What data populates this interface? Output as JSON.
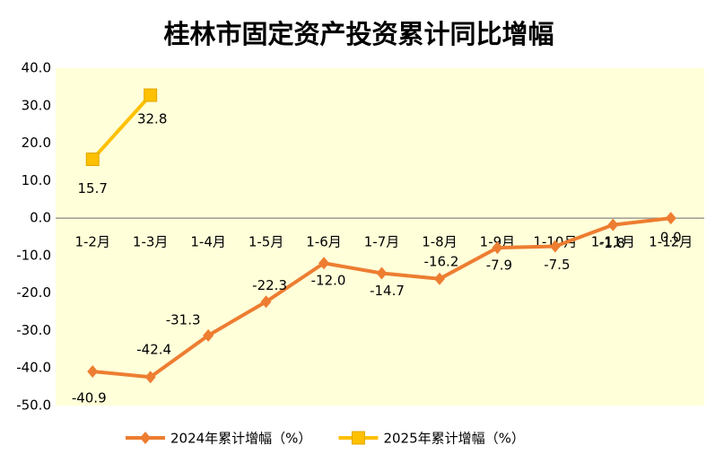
{
  "chart_data": {
    "type": "line",
    "title": "桂林市固定资产投资累计同比增幅",
    "categories": [
      "1-2月",
      "1-3月",
      "1-4月",
      "1-5月",
      "1-6月",
      "1-7月",
      "1-8月",
      "1-9月",
      "1-10月",
      "1-11月",
      "1-12月"
    ],
    "series": [
      {
        "name": "2024年累计增幅（%）",
        "color": "#ED7D31",
        "marker": "diamond",
        "values": [
          -40.9,
          -42.4,
          -31.3,
          -22.3,
          -12.0,
          -14.7,
          -16.2,
          -7.9,
          -7.5,
          -1.8,
          0.0
        ],
        "value_labels": [
          "-40.9",
          "-42.4",
          "-31.3",
          "-22.3",
          "-12.0",
          "-14.7",
          "-16.2",
          "-7.9",
          "-7.5",
          "-1.8",
          "0.0"
        ]
      },
      {
        "name": "2025年累计增幅（%）",
        "color": "#FFC000",
        "marker": "square",
        "values": [
          15.7,
          32.8,
          null,
          null,
          null,
          null,
          null,
          null,
          null,
          null,
          null
        ],
        "value_labels": [
          "15.7",
          "32.8",
          null,
          null,
          null,
          null,
          null,
          null,
          null,
          null,
          null
        ]
      }
    ],
    "ylim": [
      -50,
      40
    ],
    "yticks": [
      {
        "value": -50,
        "label": "-50.0"
      },
      {
        "value": -40,
        "label": "-40.0"
      },
      {
        "value": -30,
        "label": "-30.0"
      },
      {
        "value": -20,
        "label": "-20.0"
      },
      {
        "value": -10,
        "label": "-10.0"
      },
      {
        "value": 0,
        "label": "0.0"
      },
      {
        "value": 10,
        "label": "10.0"
      },
      {
        "value": 20,
        "label": "20.0"
      },
      {
        "value": 30,
        "label": "30.0"
      },
      {
        "value": 40,
        "label": "40.0"
      }
    ],
    "legend": "bottom"
  }
}
